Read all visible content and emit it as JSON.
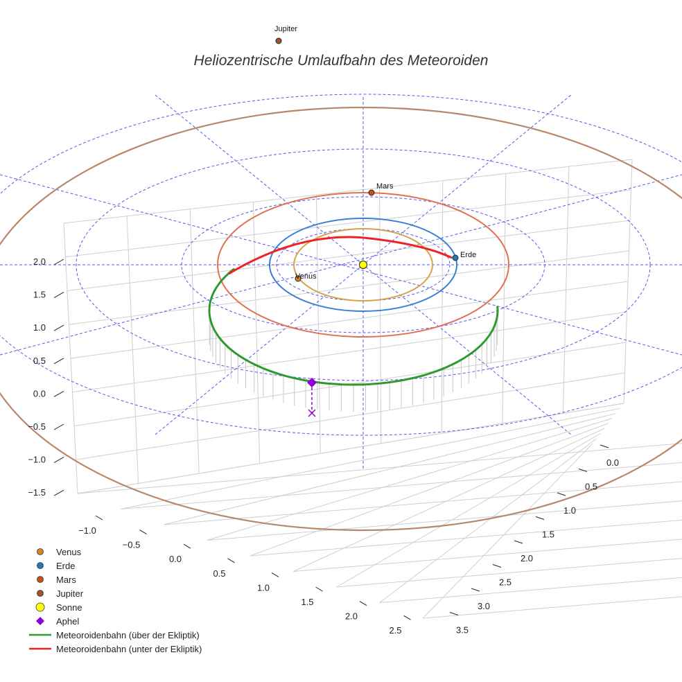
{
  "chart_data": {
    "type": "3d-orbit",
    "title": "Heliozentrische Umlaufbahn des Meteoroiden",
    "x_ticks": [
      "−1.0",
      "−0.5",
      "0.0",
      "0.5",
      "1.0",
      "1.5",
      "2.0",
      "2.5"
    ],
    "y_ticks": [
      "0.0",
      "0.5",
      "1.0",
      "1.5",
      "2.0",
      "2.5",
      "3.0",
      "3.5"
    ],
    "z_ticks": [
      "2.0",
      "1.5",
      "1.0",
      "0.5",
      "0.0",
      "−0.5",
      "−1.0",
      "−1.5"
    ],
    "planets": [
      {
        "name": "Venus",
        "orbit_radius_au": 0.72,
        "color": "#d6a24e",
        "marker_color": "#d4862a"
      },
      {
        "name": "Erde",
        "orbit_radius_au": 1.0,
        "color": "#3a7fd5",
        "marker_color": "#2878b8"
      },
      {
        "name": "Mars",
        "orbit_radius_au": 1.52,
        "color": "#e07050",
        "marker_color": "#c4501c"
      },
      {
        "name": "Jupiter",
        "orbit_radius_au": 5.2,
        "color": "#b8876a",
        "marker_color": "#a0522d"
      }
    ],
    "sun": {
      "name": "Sonne",
      "color": "#ffff00"
    },
    "meteoroid_orbit": {
      "above_label": "Meteoroidenbahn (über der Ekliptik)",
      "below_label": "Meteoroidenbahn (unter der Ekliptik)",
      "above_color": "#2e9a2e",
      "below_color": "#ee2222"
    },
    "aphel": {
      "name": "Aphel",
      "color": "#9400d3"
    },
    "grid": true,
    "legend_position": "bottom-left"
  },
  "legend": [
    {
      "label": "Venus",
      "symbol": "dot",
      "color": "#d4862a"
    },
    {
      "label": "Erde",
      "symbol": "dot",
      "color": "#2878b8"
    },
    {
      "label": "Mars",
      "symbol": "dot",
      "color": "#c4501c"
    },
    {
      "label": "Jupiter",
      "symbol": "dot",
      "color": "#a0522d"
    },
    {
      "label": "Sonne",
      "symbol": "bigdot",
      "color": "#ffff00"
    },
    {
      "label": "Aphel",
      "symbol": "diamond",
      "color": "#9400d3"
    },
    {
      "label": "Meteoroidenbahn (über der Ekliptik)",
      "symbol": "line",
      "color": "#2e9a2e"
    },
    {
      "label": "Meteoroidenbahn (unter der Ekliptik)",
      "symbol": "line",
      "color": "#ee2222"
    }
  ]
}
